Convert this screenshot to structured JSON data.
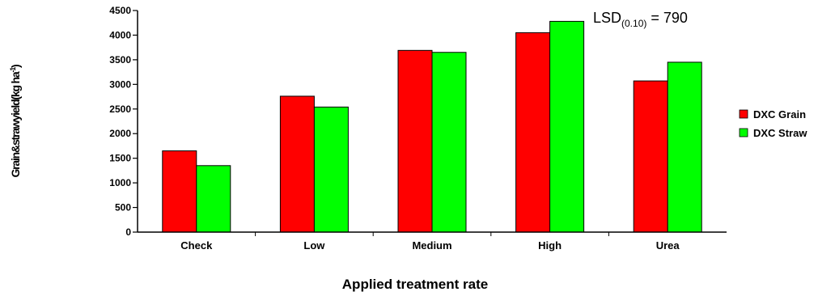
{
  "chart_data": {
    "type": "bar",
    "categories": [
      "Check",
      "Low",
      "Medium",
      "High",
      "Urea"
    ],
    "series": [
      {
        "name": "DXC Grain",
        "color": "#ff0000",
        "values": [
          1650,
          2760,
          3690,
          4050,
          3070
        ]
      },
      {
        "name": "DXC Straw",
        "color": "#00ff00",
        "values": [
          1350,
          2540,
          3650,
          4280,
          3450
        ]
      }
    ],
    "yticks": [
      "0",
      "500",
      "1000",
      "1500",
      "2000",
      "2500",
      "3000",
      "3500",
      "4000",
      "4500"
    ],
    "ylim": [
      0,
      4500
    ],
    "xlabel": "Applied treatment rate",
    "ylabel": {
      "main": "Grain&strawyield(kg ha",
      "sup": "-1",
      "close": ")"
    },
    "annotation": {
      "prefix": "LSD",
      "sub": "(0.10)",
      "suffix": " = 790"
    },
    "legend": "right",
    "grid": false
  }
}
